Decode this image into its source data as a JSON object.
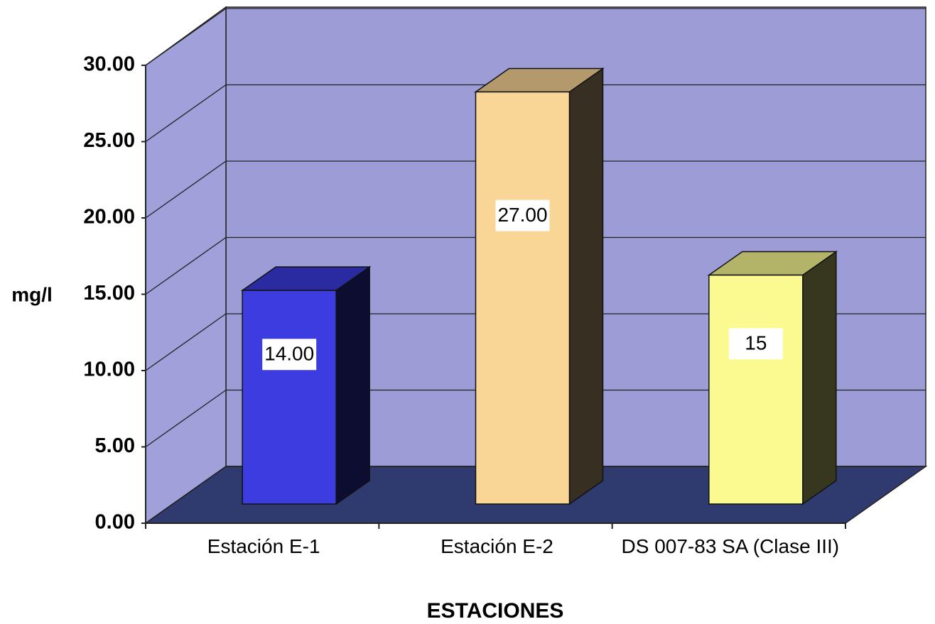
{
  "chart_data": {
    "type": "bar3d",
    "x_label": "ESTACIONES",
    "y_label": "mg/l",
    "categories": [
      "Estación E-1",
      "Estación E-2",
      "DS 007-83 SA (Clase III)"
    ],
    "values": [
      14,
      27,
      15
    ],
    "value_labels": [
      "14.00",
      "27.00",
      "15"
    ],
    "colors": [
      "#3c3ce0",
      "#f9d596",
      "#fafa90"
    ],
    "ylim": [
      0,
      30
    ],
    "yticks": [
      {
        "value": 0,
        "label": "0.00"
      },
      {
        "value": 5,
        "label": "5.00"
      },
      {
        "value": 10,
        "label": "10.00"
      },
      {
        "value": 15,
        "label": "15.00"
      },
      {
        "value": 20,
        "label": "20.00"
      },
      {
        "value": 25,
        "label": "25.00"
      },
      {
        "value": 30,
        "label": "30.00"
      }
    ],
    "grid": true
  }
}
